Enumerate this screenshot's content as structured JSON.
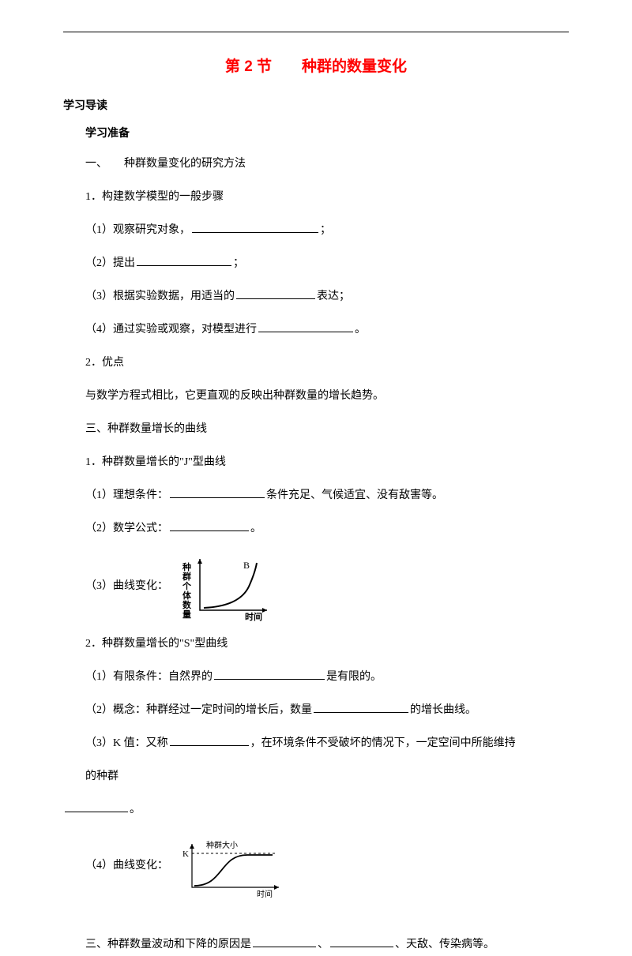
{
  "title": "第 2 节　　种群的数量变化",
  "h1": "学习导读",
  "h2": "学习准备",
  "sec1": {
    "heading": "一、　　种群数量变化的研究方法",
    "item1_label": "1．构建数学模型的一般步骤",
    "step1_a": "（1）观察研究对象，",
    "step1_b": "；",
    "step2_a": "（2）提出",
    "step2_b": "；",
    "step3_a": "（3）根据实验数据，用适当的",
    "step3_b": "表达；",
    "step4_a": "（4）通过实验或观察，对模型进行",
    "step4_b": "。",
    "item2_label": "2．优点",
    "item2_body": "与数学方程式相比，它更直观的反映出种群数量的增长趋势。"
  },
  "sec2": {
    "heading": "三、种群数量增长的曲线",
    "j_heading": "1．种群数量增长的\"J\"型曲线",
    "j_1a": "（1）理想条件：",
    "j_1b": "条件充足、气候适宜、没有敌害等。",
    "j_2a": "（2）数学公式：",
    "j_2b": "。",
    "j_3": "（3）曲线变化：",
    "s_heading": "2．种群数量增长的\"S\"型曲线",
    "s_1a": "（1）有限条件：自然界的",
    "s_1b": "是有限的。",
    "s_2a": "（2）概念：种群经过一定时间的增长后，数量",
    "s_2b": "的增长曲线。",
    "s_3a": "（3）K 值：又称",
    "s_3b": "，在环境条件不受破坏的情况下，一定空间中所能维持",
    "s_3c": "的种群",
    "s_3d": "。",
    "s_4": "（4）曲线变化："
  },
  "sec3": {
    "line_a": "三、种群数量波动和下降的原因是",
    "line_b": "、",
    "line_c": "、天敌、传染病等。"
  },
  "chart1": {
    "y_label": "种群个体数量",
    "x_label": "时间",
    "series_label": "B",
    "axis_color": "#000000",
    "line_color": "#000000",
    "line_width": 2,
    "width": 140,
    "height": 90
  },
  "chart2": {
    "y_label": "种群大小",
    "x_label": "时间",
    "k_label": "K",
    "axis_color": "#000000",
    "line_color": "#000000",
    "dash_color": "#000000",
    "line_width": 1.8,
    "width": 150,
    "height": 80
  }
}
